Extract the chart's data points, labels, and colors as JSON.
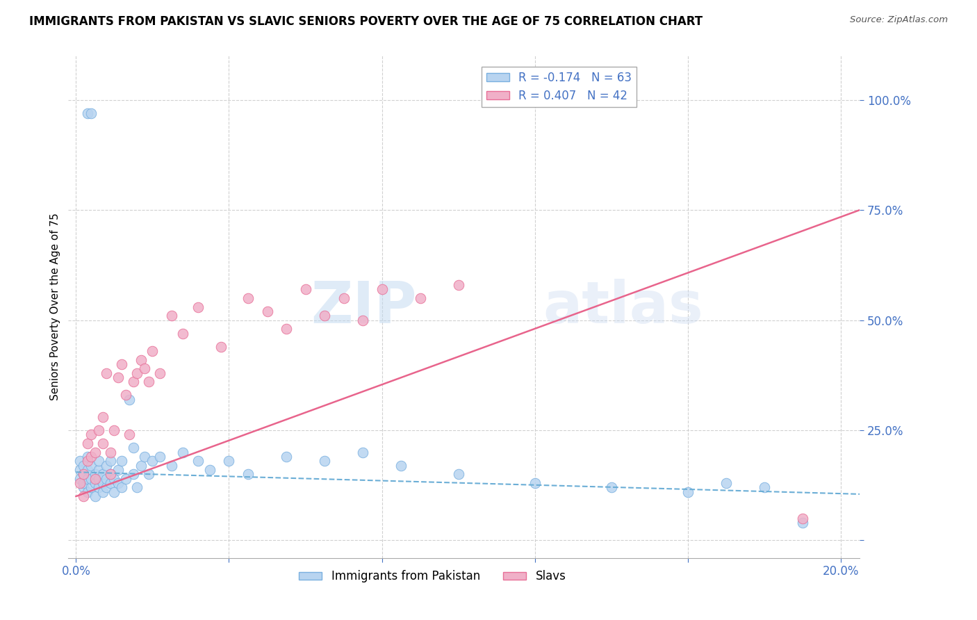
{
  "title": "IMMIGRANTS FROM PAKISTAN VS SLAVIC SENIORS POVERTY OVER THE AGE OF 75 CORRELATION CHART",
  "source": "Source: ZipAtlas.com",
  "ylabel": "Seniors Poverty Over the Age of 75",
  "x_ticks": [
    0.0,
    0.04,
    0.08,
    0.12,
    0.16,
    0.2
  ],
  "x_tick_labels": [
    "0.0%",
    "",
    "",
    "",
    "",
    "20.0%"
  ],
  "y_ticks": [
    0.0,
    0.25,
    0.5,
    0.75,
    1.0
  ],
  "y_tick_labels": [
    "",
    "25.0%",
    "50.0%",
    "75.0%",
    "100.0%"
  ],
  "xlim": [
    -0.002,
    0.205
  ],
  "ylim": [
    -0.04,
    1.1
  ],
  "pakistan_color": "#b8d4f0",
  "slavs_color": "#f0b0c8",
  "pakistan_edge_color": "#7ab0e0",
  "slavs_edge_color": "#e87098",
  "pakistan_line_color": "#6baed6",
  "slavs_line_color": "#e8648c",
  "pakistan_scatter": {
    "x": [
      0.001,
      0.001,
      0.001,
      0.002,
      0.002,
      0.002,
      0.002,
      0.003,
      0.003,
      0.003,
      0.003,
      0.004,
      0.004,
      0.004,
      0.005,
      0.005,
      0.005,
      0.006,
      0.006,
      0.006,
      0.006,
      0.007,
      0.007,
      0.007,
      0.008,
      0.008,
      0.008,
      0.009,
      0.009,
      0.009,
      0.01,
      0.01,
      0.011,
      0.011,
      0.012,
      0.012,
      0.013,
      0.014,
      0.015,
      0.015,
      0.016,
      0.017,
      0.018,
      0.019,
      0.02,
      0.022,
      0.025,
      0.028,
      0.032,
      0.035,
      0.04,
      0.045,
      0.055,
      0.065,
      0.075,
      0.085,
      0.1,
      0.12,
      0.14,
      0.16,
      0.17,
      0.18,
      0.19
    ],
    "y": [
      0.14,
      0.16,
      0.18,
      0.12,
      0.13,
      0.15,
      0.17,
      0.11,
      0.14,
      0.16,
      0.19,
      0.12,
      0.14,
      0.17,
      0.13,
      0.15,
      0.1,
      0.12,
      0.14,
      0.16,
      0.18,
      0.11,
      0.13,
      0.15,
      0.12,
      0.14,
      0.17,
      0.13,
      0.15,
      0.18,
      0.11,
      0.14,
      0.13,
      0.16,
      0.12,
      0.18,
      0.14,
      0.32,
      0.15,
      0.21,
      0.12,
      0.17,
      0.19,
      0.15,
      0.18,
      0.19,
      0.17,
      0.2,
      0.18,
      0.16,
      0.18,
      0.15,
      0.19,
      0.18,
      0.2,
      0.17,
      0.15,
      0.13,
      0.12,
      0.11,
      0.13,
      0.12,
      0.04
    ]
  },
  "pakistan_outliers": {
    "x": [
      0.003,
      0.004
    ],
    "y": [
      0.97,
      0.97
    ]
  },
  "slavs_scatter": {
    "x": [
      0.001,
      0.002,
      0.002,
      0.003,
      0.003,
      0.004,
      0.004,
      0.005,
      0.005,
      0.006,
      0.007,
      0.007,
      0.008,
      0.009,
      0.009,
      0.01,
      0.011,
      0.012,
      0.013,
      0.014,
      0.015,
      0.016,
      0.017,
      0.018,
      0.019,
      0.02,
      0.022,
      0.025,
      0.028,
      0.032,
      0.038,
      0.045,
      0.05,
      0.055,
      0.06,
      0.065,
      0.07,
      0.075,
      0.08,
      0.09,
      0.1,
      0.19
    ],
    "y": [
      0.13,
      0.15,
      0.1,
      0.22,
      0.18,
      0.24,
      0.19,
      0.14,
      0.2,
      0.25,
      0.22,
      0.28,
      0.38,
      0.2,
      0.15,
      0.25,
      0.37,
      0.4,
      0.33,
      0.24,
      0.36,
      0.38,
      0.41,
      0.39,
      0.36,
      0.43,
      0.38,
      0.51,
      0.47,
      0.53,
      0.44,
      0.55,
      0.52,
      0.48,
      0.57,
      0.51,
      0.55,
      0.5,
      0.57,
      0.55,
      0.58,
      0.05
    ]
  },
  "pakistan_line": {
    "x0": 0.0,
    "y0": 0.155,
    "x1": 0.205,
    "y1": 0.105
  },
  "slavs_line": {
    "x0": 0.0,
    "y0": 0.1,
    "x1": 0.205,
    "y1": 0.75
  },
  "watermark_zip_color": "#c0d8f0",
  "watermark_atlas_color": "#c8d8f0"
}
